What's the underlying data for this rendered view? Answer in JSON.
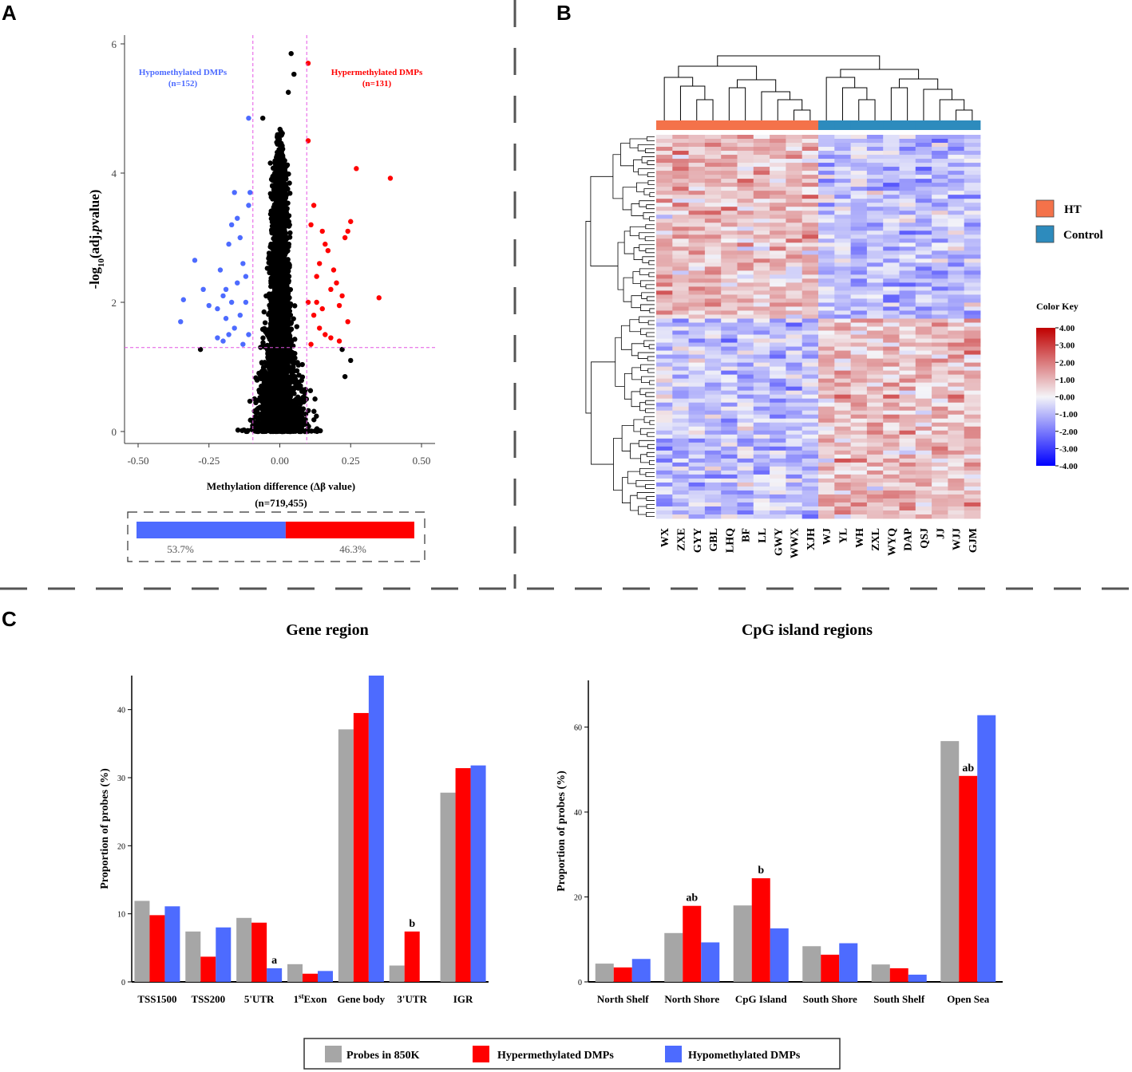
{
  "panels": {
    "a": "A",
    "b": "B",
    "c": "C"
  },
  "colors": {
    "gray": "#a6a6a6",
    "red": "#ff0000",
    "blue": "#4d6bff",
    "ht": "#f4724a",
    "control": "#2d8bbd",
    "guide": "#e455e4"
  },
  "chart_data": [
    {
      "type": "scatter",
      "panel": "A",
      "ylabel_html": "-log<tspan baseline-shift='sub' font-size='11'>10</tspan>(adj.<tspan font-style='italic'>p</tspan>value)",
      "xlabel": "Methylation difference (Δβ value)",
      "n_label": "(n=719,455)",
      "xlim": [
        -0.55,
        0.55
      ],
      "ylim": [
        0,
        6.1
      ],
      "xticks": [
        -0.5,
        -0.25,
        0,
        0.25,
        0.5
      ],
      "xtick_labels": [
        "-0.50",
        "-0.25",
        "0.00",
        "0.25",
        "0.50"
      ],
      "yticks": [
        0,
        2,
        4,
        6
      ],
      "ytick_labels": [
        "0",
        "2",
        "4",
        "6"
      ],
      "thresholds": {
        "delta_beta": [
          -0.095,
          0.095
        ],
        "neg_log10_p": 1.3
      },
      "hypo_label": "Hypomethylated DMPs",
      "hypo_n": "(n=152)",
      "hyper_label": "Hypermethylated DMPs",
      "hyper_n": "(n=131)",
      "hypo_points": [
        [
          -0.35,
          1.7
        ],
        [
          -0.34,
          2.04
        ],
        [
          -0.3,
          2.65
        ],
        [
          -0.27,
          2.2
        ],
        [
          -0.25,
          1.95
        ],
        [
          -0.22,
          1.9
        ],
        [
          -0.21,
          2.5
        ],
        [
          -0.2,
          2.1
        ],
        [
          -0.19,
          2.2
        ],
        [
          -0.18,
          2.9
        ],
        [
          -0.17,
          3.2
        ],
        [
          -0.16,
          3.7
        ],
        [
          -0.15,
          3.3
        ],
        [
          -0.14,
          3.0
        ],
        [
          -0.13,
          2.6
        ],
        [
          -0.12,
          2.4
        ],
        [
          -0.11,
          3.5
        ],
        [
          -0.105,
          3.7
        ],
        [
          -0.11,
          4.85
        ],
        [
          -0.12,
          2.0
        ],
        [
          -0.14,
          1.8
        ],
        [
          -0.16,
          1.6
        ],
        [
          -0.18,
          1.5
        ],
        [
          -0.2,
          1.4
        ],
        [
          -0.22,
          1.45
        ],
        [
          -0.13,
          1.35
        ],
        [
          -0.11,
          1.5
        ],
        [
          -0.15,
          2.3
        ],
        [
          -0.17,
          2.0
        ],
        [
          -0.19,
          1.75
        ]
      ],
      "hyper_points": [
        [
          0.1,
          5.7
        ],
        [
          0.1,
          4.5
        ],
        [
          0.27,
          4.07
        ],
        [
          0.39,
          3.92
        ],
        [
          0.25,
          3.25
        ],
        [
          0.24,
          3.1
        ],
        [
          0.23,
          3.0
        ],
        [
          0.35,
          2.07
        ],
        [
          0.22,
          2.1
        ],
        [
          0.21,
          1.95
        ],
        [
          0.2,
          2.3
        ],
        [
          0.19,
          2.5
        ],
        [
          0.18,
          2.2
        ],
        [
          0.17,
          2.8
        ],
        [
          0.16,
          2.9
        ],
        [
          0.15,
          3.1
        ],
        [
          0.14,
          2.6
        ],
        [
          0.13,
          2.4
        ],
        [
          0.12,
          3.5
        ],
        [
          0.11,
          3.2
        ],
        [
          0.1,
          2.0
        ],
        [
          0.12,
          1.8
        ],
        [
          0.14,
          1.6
        ],
        [
          0.16,
          1.5
        ],
        [
          0.18,
          1.45
        ],
        [
          0.21,
          1.4
        ],
        [
          0.24,
          1.7
        ],
        [
          0.11,
          1.35
        ],
        [
          0.13,
          2.0
        ],
        [
          0.15,
          1.9
        ]
      ],
      "ns_points": [
        [
          0.04,
          5.85
        ],
        [
          0.05,
          5.53
        ],
        [
          0.03,
          5.25
        ],
        [
          -0.06,
          4.85
        ],
        [
          -0.28,
          1.27
        ],
        [
          0.22,
          1.27
        ],
        [
          0.25,
          1.1
        ],
        [
          0.23,
          0.85
        ]
      ],
      "bar": {
        "blue_label": "53.7%",
        "red_label": "46.3%",
        "blue_pct": 53.7,
        "red_pct": 46.3
      }
    },
    {
      "type": "heatmap",
      "panel": "B",
      "columns": [
        "WX",
        "ZXE",
        "GYY",
        "GBL",
        "LHQ",
        "BF",
        "LL",
        "GWY",
        "WWX",
        "XJH",
        "WJ",
        "YL",
        "WH",
        "ZXL",
        "WYQ",
        "DAP",
        "QSJ",
        "JJ",
        "WJJ",
        "GJM"
      ],
      "groups": [
        "HT",
        "HT",
        "HT",
        "HT",
        "HT",
        "HT",
        "HT",
        "HT",
        "HT",
        "HT",
        "Control",
        "Control",
        "Control",
        "Control",
        "Control",
        "Control",
        "Control",
        "Control",
        "Control",
        "Control"
      ],
      "rows": 96,
      "legend": {
        "ht": "HT",
        "control": "Control"
      },
      "color_key_title": "Color Key",
      "color_key_ticks": [
        "4.00",
        "3.00",
        "2.00",
        "1.00",
        "0.00",
        "-1.00",
        "-2.00",
        "-3.00",
        "-4.00"
      ],
      "range": [
        -4,
        4
      ]
    },
    {
      "type": "bar",
      "panel": "C-left",
      "title": "Gene region",
      "ylabel": "Proportion of probes (%)",
      "categories_html": [
        "TSS1500",
        "TSS200",
        "5'UTR",
        "1<tspan baseline-shift='super' font-size='9'>st</tspan>Exon",
        "Gene body",
        "3'UTR",
        "IGR"
      ],
      "ylim": [
        0,
        45
      ],
      "yticks": [
        0,
        10,
        20,
        30,
        40
      ],
      "series": [
        {
          "name": "Probes in 850K",
          "color": "#a6a6a6",
          "values": [
            11.9,
            7.4,
            9.4,
            2.6,
            37.1,
            2.4,
            27.8
          ]
        },
        {
          "name": "Hypermethylated DMPs",
          "color": "#ff0000",
          "values": [
            9.8,
            3.7,
            8.7,
            1.2,
            39.5,
            7.4,
            31.4
          ]
        },
        {
          "name": "Hypomethylated DMPs",
          "color": "#4d6bff",
          "values": [
            11.1,
            8.0,
            2.0,
            1.6,
            45.3,
            0,
            31.8
          ]
        }
      ],
      "annotations": [
        {
          "category": 2,
          "series": 2,
          "text": "a"
        },
        {
          "category": 5,
          "series": 1,
          "text": "b"
        }
      ]
    },
    {
      "type": "bar",
      "panel": "C-right",
      "title": "CpG island regions",
      "ylabel": "Proportion of probes (%)",
      "categories_html": [
        "North Shelf",
        "North Shore",
        "CpG Island",
        "South Shore",
        "South Shelf",
        "Open Sea"
      ],
      "ylim": [
        0,
        71
      ],
      "yticks": [
        0,
        20,
        40,
        60
      ],
      "series": [
        {
          "name": "Probes in 850K",
          "color": "#a6a6a6",
          "values": [
            4.3,
            11.5,
            18.0,
            8.4,
            4.1,
            56.7
          ]
        },
        {
          "name": "Hypermethylated DMPs",
          "color": "#ff0000",
          "values": [
            3.4,
            17.9,
            24.4,
            6.4,
            3.2,
            48.5
          ]
        },
        {
          "name": "Hypomethylated DMPs",
          "color": "#4d6bff",
          "values": [
            5.4,
            9.3,
            12.6,
            9.1,
            1.7,
            62.8
          ]
        }
      ],
      "annotations": [
        {
          "category": 1,
          "series": 1,
          "text": "ab"
        },
        {
          "category": 2,
          "series": 1,
          "text": "b"
        },
        {
          "category": 5,
          "series": 1,
          "text": "ab"
        }
      ]
    }
  ],
  "legend_c": {
    "gray": "Probes in 850K",
    "red": "Hypermethylated DMPs",
    "blue": "Hypomethylated DMPs"
  }
}
